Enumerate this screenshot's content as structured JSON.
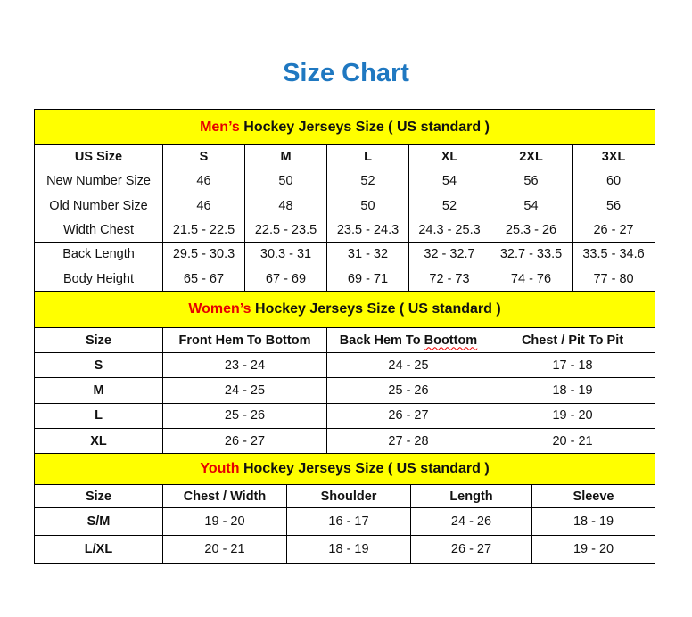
{
  "title": "Size Chart",
  "colors": {
    "title": "#1f78c1",
    "banner_bg": "#ffff00",
    "highlight": "#e60000"
  },
  "sections": [
    {
      "id": "men",
      "banner_highlight": "Men’s",
      "banner_rest": " Hockey Jerseys Size ( US standard )",
      "headers": [
        "US Size",
        "S",
        "M",
        "L",
        "XL",
        "2XL",
        "3XL"
      ],
      "rows": [
        [
          "New Number Size",
          "46",
          "50",
          "52",
          "54",
          "56",
          "60"
        ],
        [
          "Old Number Size",
          "46",
          "48",
          "50",
          "52",
          "54",
          "56"
        ],
        [
          "Width Chest",
          "21.5 - 22.5",
          "22.5 - 23.5",
          "23.5 - 24.3",
          "24.3 - 25.3",
          "25.3 - 26",
          "26 - 27"
        ],
        [
          "Back Length",
          "29.5 - 30.3",
          "30.3 - 31",
          "31 - 32",
          "32 - 32.7",
          "32.7 - 33.5",
          "33.5 - 34.6"
        ],
        [
          "Body Height",
          "65 - 67",
          "67 - 69",
          "69 - 71",
          "72 - 73",
          "74 - 76",
          "77 - 80"
        ]
      ]
    },
    {
      "id": "women",
      "banner_highlight": "Women’s",
      "banner_rest": " Hockey Jerseys Size ( US standard )",
      "headers": [
        "Size",
        "Front Hem To Bottom",
        "Back Hem To Boottom",
        "Chest / Pit To Pit"
      ],
      "rows": [
        [
          "S",
          "23 - 24",
          "24 - 25",
          "17 - 18"
        ],
        [
          "M",
          "24 - 25",
          "25 - 26",
          "18 - 19"
        ],
        [
          "L",
          "25 - 26",
          "26 - 27",
          "19 - 20"
        ],
        [
          "XL",
          "26 - 27",
          "27 - 28",
          "20 - 21"
        ]
      ]
    },
    {
      "id": "youth",
      "banner_highlight": "Youth",
      "banner_rest": " Hockey Jerseys Size ( US standard )",
      "headers": [
        "Size",
        "Chest / Width",
        "Shoulder",
        "Length",
        "Sleeve"
      ],
      "rows": [
        [
          "S/M",
          "19 - 20",
          "16 - 17",
          "24 - 26",
          "18 - 19"
        ],
        [
          "L/XL",
          "20 - 21",
          "18 - 19",
          "26 - 27",
          "19 - 20"
        ]
      ]
    }
  ]
}
